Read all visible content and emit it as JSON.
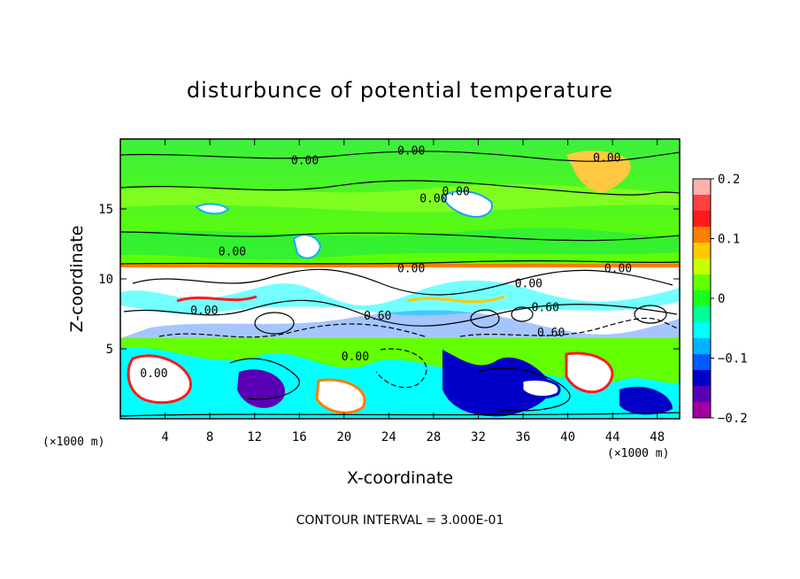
{
  "chart_data": {
    "type": "heatmap",
    "title": "disturbunce of potential temperature",
    "xlabel": "X-coordinate",
    "ylabel": "Z-coordinate",
    "x_unit": "(×1000 m)",
    "y_unit": "(×1000 m)",
    "xlim": [
      0,
      50
    ],
    "ylim": [
      0,
      20
    ],
    "x_ticks": [
      4,
      8,
      12,
      16,
      20,
      24,
      28,
      32,
      36,
      40,
      44,
      48
    ],
    "y_ticks": [
      5,
      10,
      15
    ],
    "colorbar": {
      "min": -0.2,
      "max": 0.2,
      "ticks": [
        0.2,
        0.1,
        0,
        -0.1,
        -0.2
      ],
      "tick_labels": [
        "0.2",
        "0.1",
        "0",
        "−0.1",
        "−0.2"
      ],
      "colors": [
        "#ffb0b0",
        "#ff4040",
        "#ff1a1a",
        "#ff7d00",
        "#ffc800",
        "#c8ff00",
        "#64ff00",
        "#1aff1a",
        "#00ff96",
        "#00ffff",
        "#00b4ff",
        "#005aff",
        "#0000c8",
        "#5a00b4",
        "#a000a0"
      ]
    },
    "contour_labels": [
      {
        "text": "0.00",
        "x": 16.5,
        "z": 18.5
      },
      {
        "text": "0.00",
        "x": 26.0,
        "z": 19.2
      },
      {
        "text": "0.00",
        "x": 43.5,
        "z": 18.7
      },
      {
        "text": "0.00",
        "x": 28.0,
        "z": 15.8
      },
      {
        "text": "0.00",
        "x": 30.0,
        "z": 16.3
      },
      {
        "text": "0.00",
        "x": 10.0,
        "z": 12.0
      },
      {
        "text": "0.00",
        "x": 26.0,
        "z": 10.8
      },
      {
        "text": "0.00",
        "x": 44.5,
        "z": 10.8
      },
      {
        "text": "0.00",
        "x": 36.5,
        "z": 9.7
      },
      {
        "text": "0.60",
        "x": 23.0,
        "z": 7.4
      },
      {
        "text": "0.60",
        "x": 38.0,
        "z": 8.0
      },
      {
        "text": "0.00",
        "x": 7.5,
        "z": 7.8
      },
      {
        "text": "0.60",
        "x": 38.5,
        "z": 6.2
      },
      {
        "text": "0.00",
        "x": 21.0,
        "z": 4.5
      },
      {
        "text": "0.00",
        "x": 3.0,
        "z": 3.3
      }
    ],
    "footer": "CONTOUR INTERVAL = 3.000E-01"
  }
}
